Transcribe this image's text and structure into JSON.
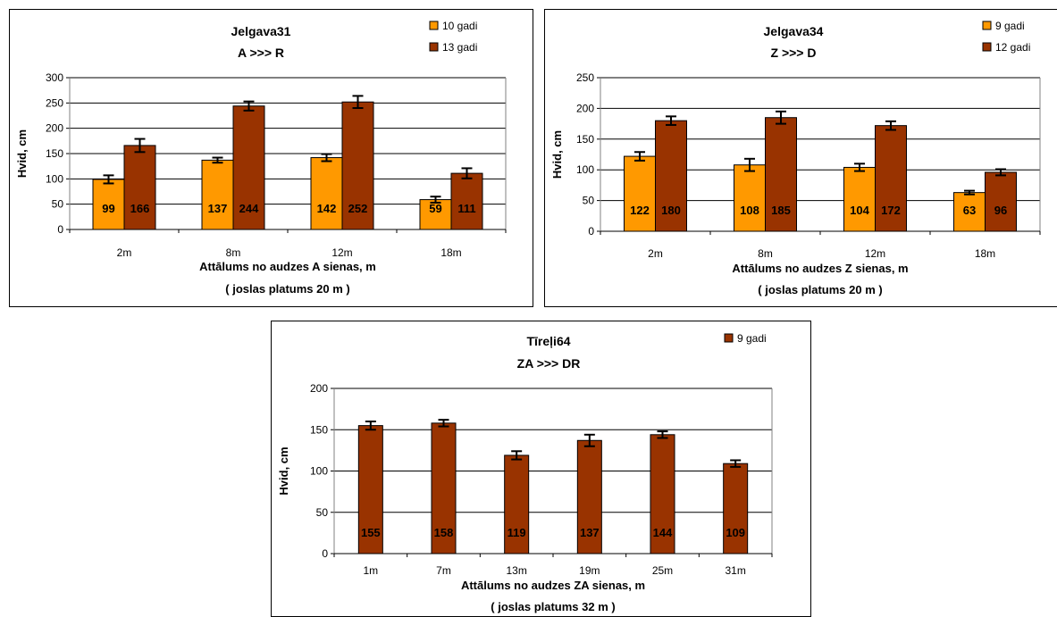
{
  "colors": {
    "orange": "#FF9900",
    "brown": "#993300"
  },
  "chart_data": [
    {
      "type": "bar",
      "title": "Jelgava31",
      "subtitle": "A >>> R",
      "xlabel": "Attālums no audzes A sienas, m",
      "xlabel2": "( joslas platums 20 m )",
      "ylabel": "Hvid, cm",
      "ylim": [
        0,
        300
      ],
      "yticks": [
        0,
        50,
        100,
        150,
        200,
        250,
        300
      ],
      "categories": [
        "2m",
        "8m",
        "12m",
        "18m"
      ],
      "grid": true,
      "legend": "top-right",
      "series": [
        {
          "name": "10 gadi",
          "color": "#FF9900",
          "values": [
            99,
            137,
            142,
            59
          ],
          "errors": [
            8,
            5,
            7,
            6
          ]
        },
        {
          "name": "13 gadi",
          "color": "#993300",
          "values": [
            166,
            244,
            252,
            111
          ],
          "errors": [
            13,
            9,
            12,
            10
          ]
        }
      ]
    },
    {
      "type": "bar",
      "title": "Jelgava34",
      "subtitle": "Z >>> D",
      "xlabel": "Attālums no audzes Z sienas, m",
      "xlabel2": "( joslas platums 20 m )",
      "ylabel": "Hvid, cm",
      "ylim": [
        0,
        250
      ],
      "yticks": [
        0,
        50,
        100,
        150,
        200,
        250
      ],
      "categories": [
        "2m",
        "8m",
        "12m",
        "18m"
      ],
      "grid": true,
      "legend": "top-right",
      "series": [
        {
          "name": "9 gadi",
          "color": "#FF9900",
          "values": [
            122,
            108,
            104,
            63
          ],
          "errors": [
            7,
            10,
            6,
            3
          ]
        },
        {
          "name": "12 gadi",
          "color": "#993300",
          "values": [
            180,
            185,
            172,
            96
          ],
          "errors": [
            7,
            10,
            7,
            5
          ]
        }
      ]
    },
    {
      "type": "bar",
      "title": "Tīreļi64",
      "subtitle": "ZA >>> DR",
      "xlabel": "Attālums no audzes ZA sienas, m",
      "xlabel2": "( joslas platums 32 m )",
      "ylabel": "Hvid, cm",
      "ylim": [
        0,
        200
      ],
      "yticks": [
        0,
        50,
        100,
        150,
        200
      ],
      "categories": [
        "1m",
        "7m",
        "13m",
        "19m",
        "25m",
        "31m"
      ],
      "grid": true,
      "legend": "top-right",
      "series": [
        {
          "name": "9 gadi",
          "color": "#993300",
          "values": [
            155,
            158,
            119,
            137,
            144,
            109
          ],
          "errors": [
            5,
            4,
            5,
            7,
            4,
            4
          ]
        }
      ]
    }
  ]
}
